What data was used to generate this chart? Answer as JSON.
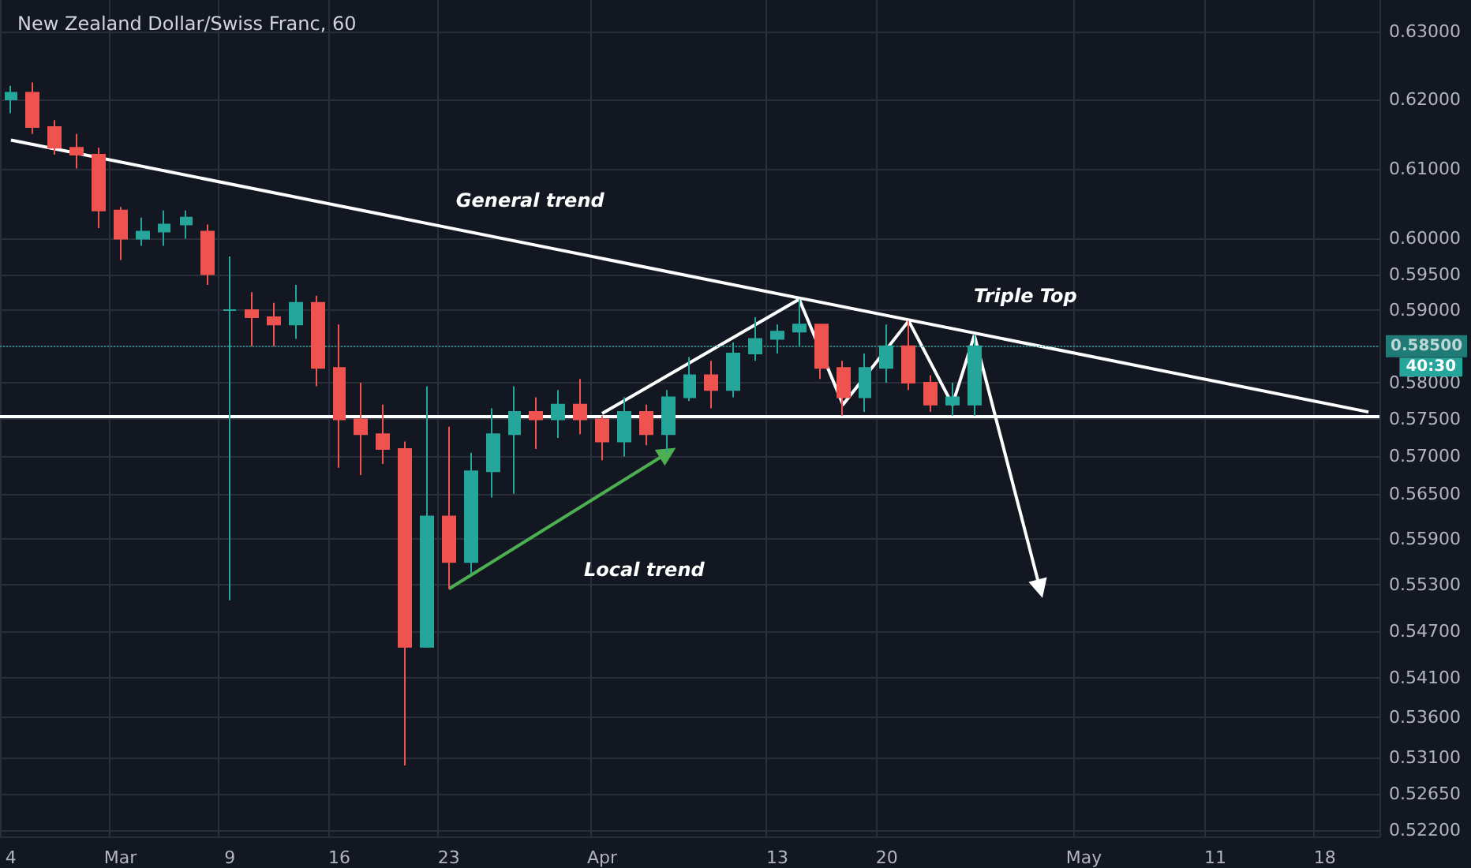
{
  "chart_data": {
    "type": "candlestick",
    "title": "New Zealand Dollar/Swiss Franc, 60",
    "categories": [
      "4",
      null,
      null,
      null,
      null,
      "Mar",
      null,
      null,
      null,
      null,
      "9",
      null,
      null,
      null,
      null,
      "16",
      null,
      null,
      null,
      null,
      "23",
      null,
      null,
      null,
      null,
      null,
      null,
      "Apr",
      null,
      null,
      null,
      null,
      null,
      null,
      null,
      "13",
      null,
      null,
      null,
      null,
      "20",
      null,
      null,
      null,
      null,
      null,
      null,
      null,
      null,
      "May",
      null,
      null,
      null,
      null,
      null,
      "11",
      null,
      null,
      null,
      null,
      "18",
      null,
      null
    ],
    "series": [
      {
        "type": "candlestick",
        "ohlc": [
          [
            0.62,
            0.622,
            0.618,
            0.621
          ],
          [
            0.621,
            0.6225,
            0.615,
            0.616
          ],
          [
            0.616,
            0.617,
            0.612,
            0.613
          ],
          [
            0.613,
            0.615,
            0.61,
            0.612
          ],
          [
            0.612,
            0.613,
            0.6015,
            0.604
          ],
          [
            0.604,
            0.6045,
            0.597,
            0.6
          ],
          [
            0.6,
            0.603,
            0.599,
            0.601
          ],
          [
            0.601,
            0.604,
            0.599,
            0.602
          ],
          [
            0.602,
            0.604,
            0.6,
            0.603
          ],
          [
            0.601,
            0.602,
            0.5935,
            0.595
          ],
          [
            0.59,
            0.5975,
            0.551,
            0.59
          ],
          [
            0.59,
            0.5925,
            0.585,
            0.589
          ],
          [
            0.589,
            0.591,
            0.585,
            0.588
          ],
          [
            0.588,
            0.5935,
            0.586,
            0.591
          ],
          [
            0.591,
            0.592,
            0.5795,
            0.582
          ],
          [
            0.582,
            0.588,
            0.5685,
            0.575
          ],
          [
            0.575,
            0.58,
            0.5675,
            0.573
          ],
          [
            0.573,
            0.577,
            0.569,
            0.571
          ],
          [
            0.571,
            0.572,
            0.53,
            0.545
          ],
          [
            0.545,
            0.5795,
            0.545,
            0.562
          ],
          [
            0.562,
            0.574,
            0.5525,
            0.556
          ],
          [
            0.556,
            0.5705,
            0.5545,
            0.568
          ],
          [
            0.568,
            0.5765,
            0.5645,
            0.573
          ],
          [
            0.573,
            0.5795,
            0.565,
            0.576
          ],
          [
            0.576,
            0.578,
            0.571,
            0.575
          ],
          [
            0.575,
            0.579,
            0.5725,
            0.577
          ],
          [
            0.577,
            0.5805,
            0.573,
            0.575
          ],
          [
            0.575,
            0.5755,
            0.5695,
            0.572
          ],
          [
            0.572,
            0.578,
            0.57,
            0.576
          ],
          [
            0.576,
            0.577,
            0.5715,
            0.573
          ],
          [
            0.573,
            0.579,
            0.5705,
            0.578
          ],
          [
            0.578,
            0.5835,
            0.5775,
            0.581
          ],
          [
            0.581,
            0.583,
            0.5765,
            0.579
          ],
          [
            0.579,
            0.5855,
            0.578,
            0.584
          ],
          [
            0.584,
            0.589,
            0.583,
            0.586
          ],
          [
            0.586,
            0.588,
            0.584,
            0.587
          ],
          [
            0.587,
            0.5915,
            0.585,
            0.588
          ],
          [
            0.588,
            0.588,
            0.5805,
            0.582
          ],
          [
            0.582,
            0.583,
            0.5755,
            0.578
          ],
          [
            0.578,
            0.584,
            0.576,
            0.582
          ],
          [
            0.582,
            0.588,
            0.58,
            0.585
          ],
          [
            0.585,
            0.5885,
            0.579,
            0.58
          ],
          [
            0.58,
            0.581,
            0.576,
            0.577
          ],
          [
            0.577,
            0.58,
            0.5755,
            0.578
          ],
          [
            0.577,
            0.5865,
            0.5755,
            0.585
          ],
          null,
          null,
          null,
          null,
          null,
          null,
          null,
          null,
          null,
          null,
          null,
          null,
          null,
          null,
          null,
          null,
          null,
          null
        ],
        "colors": [
          "#26a69a",
          "#ef5350",
          "#ef5350",
          "#ef5350",
          "#ef5350",
          "#ef5350",
          "#26a69a",
          "#26a69a",
          "#26a69a",
          "#ef5350",
          "#26a69a",
          "#ef5350",
          "#ef5350",
          "#26a69a",
          "#ef5350",
          "#ef5350",
          "#ef5350",
          "#ef5350",
          "#ef5350",
          "#26a69a",
          "#ef5350",
          "#26a69a",
          "#26a69a",
          "#26a69a",
          "#ef5350",
          "#26a69a",
          "#ef5350",
          "#ef5350",
          "#26a69a",
          "#ef5350",
          "#26a69a",
          "#26a69a",
          "#ef5350",
          "#26a69a",
          "#26a69a",
          "#26a69a",
          "#26a69a",
          "#ef5350",
          "#ef5350",
          "#26a69a",
          "#26a69a",
          "#ef5350",
          "#ef5350",
          "#26a69a",
          "#26a69a",
          null,
          null,
          null,
          null,
          null,
          null,
          null,
          null,
          null,
          null,
          null,
          null,
          null,
          null,
          null,
          null,
          null,
          null
        ]
      },
      {
        "type": "line",
        "color": "#ffffff",
        "values": [
          0.6141,
          null,
          null,
          null,
          null,
          null,
          null,
          null,
          null,
          null,
          null,
          null,
          null,
          null,
          null,
          null,
          null,
          null,
          null,
          null,
          null,
          null,
          null,
          null,
          null,
          null,
          null,
          null,
          null,
          null,
          null,
          null,
          null,
          null,
          null,
          null,
          null,
          null,
          null,
          null,
          null,
          null,
          null,
          null,
          null,
          null,
          null,
          null,
          null,
          null,
          null,
          null,
          null,
          null,
          null,
          null,
          null,
          null,
          null,
          null,
          null,
          null,
          0.576
        ]
      },
      {
        "type": "line",
        "color": "#4caf50",
        "marker": "triangle",
        "values": [
          null,
          null,
          null,
          null,
          null,
          null,
          null,
          null,
          null,
          null,
          null,
          null,
          null,
          null,
          null,
          null,
          null,
          null,
          null,
          null,
          0.5525,
          null,
          null,
          null,
          null,
          null,
          null,
          null,
          null,
          null,
          0.5705,
          null,
          null,
          null,
          null,
          null,
          null,
          null,
          null,
          null,
          null,
          null,
          null,
          null,
          null,
          null,
          null,
          null,
          null,
          null,
          null,
          null,
          null,
          null,
          null,
          null,
          null,
          null,
          null,
          null,
          null,
          null,
          null
        ]
      },
      {
        "type": "line",
        "color": "#ffffff",
        "values": [
          null,
          null,
          null,
          null,
          null,
          null,
          null,
          null,
          null,
          null,
          null,
          null,
          null,
          null,
          null,
          null,
          null,
          null,
          null,
          null,
          null,
          null,
          null,
          null,
          null,
          null,
          null,
          0.5758,
          null,
          null,
          null,
          null,
          null,
          null,
          null,
          null,
          0.5915,
          null,
          0.577,
          null,
          null,
          0.5885,
          null,
          0.577,
          0.5865,
          null,
          null,
          null,
          null,
          null,
          null,
          null,
          null,
          null,
          null,
          null,
          null,
          null,
          null,
          null,
          null,
          null,
          null
        ]
      },
      {
        "type": "line",
        "color": "#ffffff",
        "marker": "triangle",
        "values": [
          null,
          null,
          null,
          null,
          null,
          null,
          null,
          null,
          null,
          null,
          null,
          null,
          null,
          null,
          null,
          null,
          null,
          null,
          null,
          null,
          null,
          null,
          null,
          null,
          null,
          null,
          null,
          null,
          null,
          null,
          null,
          null,
          null,
          null,
          null,
          null,
          null,
          null,
          null,
          null,
          null,
          null,
          null,
          null,
          0.5865,
          null,
          null,
          0.5525,
          null,
          null,
          null,
          null,
          null,
          null,
          null,
          null,
          null,
          null,
          null,
          null,
          null,
          null,
          null
        ]
      }
    ],
    "ylim": [
      0.5212,
      0.6347
    ],
    "log": true,
    "yticks": [
      {
        "value": 0.522,
        "label": "0.52200"
      },
      {
        "value": 0.5265,
        "label": "0.52650"
      },
      {
        "value": 0.531,
        "label": "0.53100"
      },
      {
        "value": 0.536,
        "label": "0.53600"
      },
      {
        "value": 0.541,
        "label": "0.54100"
      },
      {
        "value": 0.547,
        "label": "0.54700"
      },
      {
        "value": 0.553,
        "label": "0.55300"
      },
      {
        "value": 0.559,
        "label": "0.55900"
      },
      {
        "value": 0.565,
        "label": "0.56500"
      },
      {
        "value": 0.57,
        "label": "0.57000"
      },
      {
        "value": 0.575,
        "label": "0.57500"
      },
      {
        "value": 0.58,
        "label": "0.58000"
      },
      {
        "value": 0.585,
        "label": null
      },
      {
        "value": 0.59,
        "label": "0.59000"
      },
      {
        "value": 0.595,
        "label": "0.59500"
      },
      {
        "value": 0.6,
        "label": "0.60000"
      },
      {
        "value": 0.61,
        "label": "0.61000"
      },
      {
        "value": 0.62,
        "label": "0.62000"
      },
      {
        "value": 0.63,
        "label": "0.63000"
      }
    ],
    "ref_lines": [
      {
        "axis": "y",
        "value": 0.5755,
        "color": "#ffffff",
        "line_style": "solid"
      },
      {
        "axis": "y",
        "value": 0.585,
        "label": "0.58500",
        "color": "#26a69a",
        "line_style": "dotted"
      }
    ],
    "annotations": [
      "General trend",
      "Local trend",
      "Triple Top",
      "40:30"
    ],
    "grid": true,
    "marker": "none",
    "line_style": "solid"
  }
}
